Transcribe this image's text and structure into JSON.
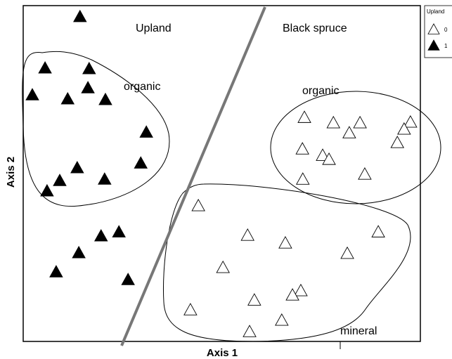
{
  "chart_data": {
    "type": "scatter",
    "xlabel": "Axis 1",
    "ylabel": "Axis 2",
    "legend_title": "Upland",
    "annotations": [
      "Upland",
      "Black spruce",
      "organic",
      "organic",
      "mineral"
    ],
    "xlim": [
      0,
      100
    ],
    "ylim": [
      0,
      100
    ],
    "series": [
      {
        "name": "0",
        "color": "#000000",
        "filled": false,
        "x": [
          70.8,
          78.1,
          84.8,
          82.1,
          97.5,
          95.9,
          94.2,
          70.3,
          75.4,
          77.0,
          86.0,
          70.4,
          44.1,
          56.5,
          66.0,
          89.4,
          81.6,
          50.3,
          69.9,
          58.2,
          67.8,
          65.1,
          42.1,
          57.0
        ],
        "y": [
          66.7,
          65.1,
          65.1,
          62.1,
          65.3,
          63.2,
          59.2,
          57.3,
          55.4,
          54.2,
          49.8,
          48.3,
          40.4,
          31.6,
          29.3,
          32.6,
          26.2,
          22.0,
          15.1,
          12.3,
          13.8,
          6.3,
          9.4,
          2.9
        ]
      },
      {
        "name": "1",
        "color": "#000000",
        "filled": true,
        "x": [
          14.3,
          5.5,
          16.6,
          2.3,
          11.2,
          16.3,
          20.7,
          31.0,
          29.6,
          13.6,
          9.2,
          20.5,
          6.0,
          24.1,
          19.6,
          14.0,
          8.3,
          26.4
        ],
        "y": [
          96.7,
          81.4,
          81.2,
          73.4,
          72.2,
          75.5,
          72.0,
          62.3,
          53.1,
          51.7,
          47.9,
          48.3,
          44.8,
          32.6,
          31.4,
          26.4,
          20.7,
          18.4
        ]
      }
    ]
  }
}
